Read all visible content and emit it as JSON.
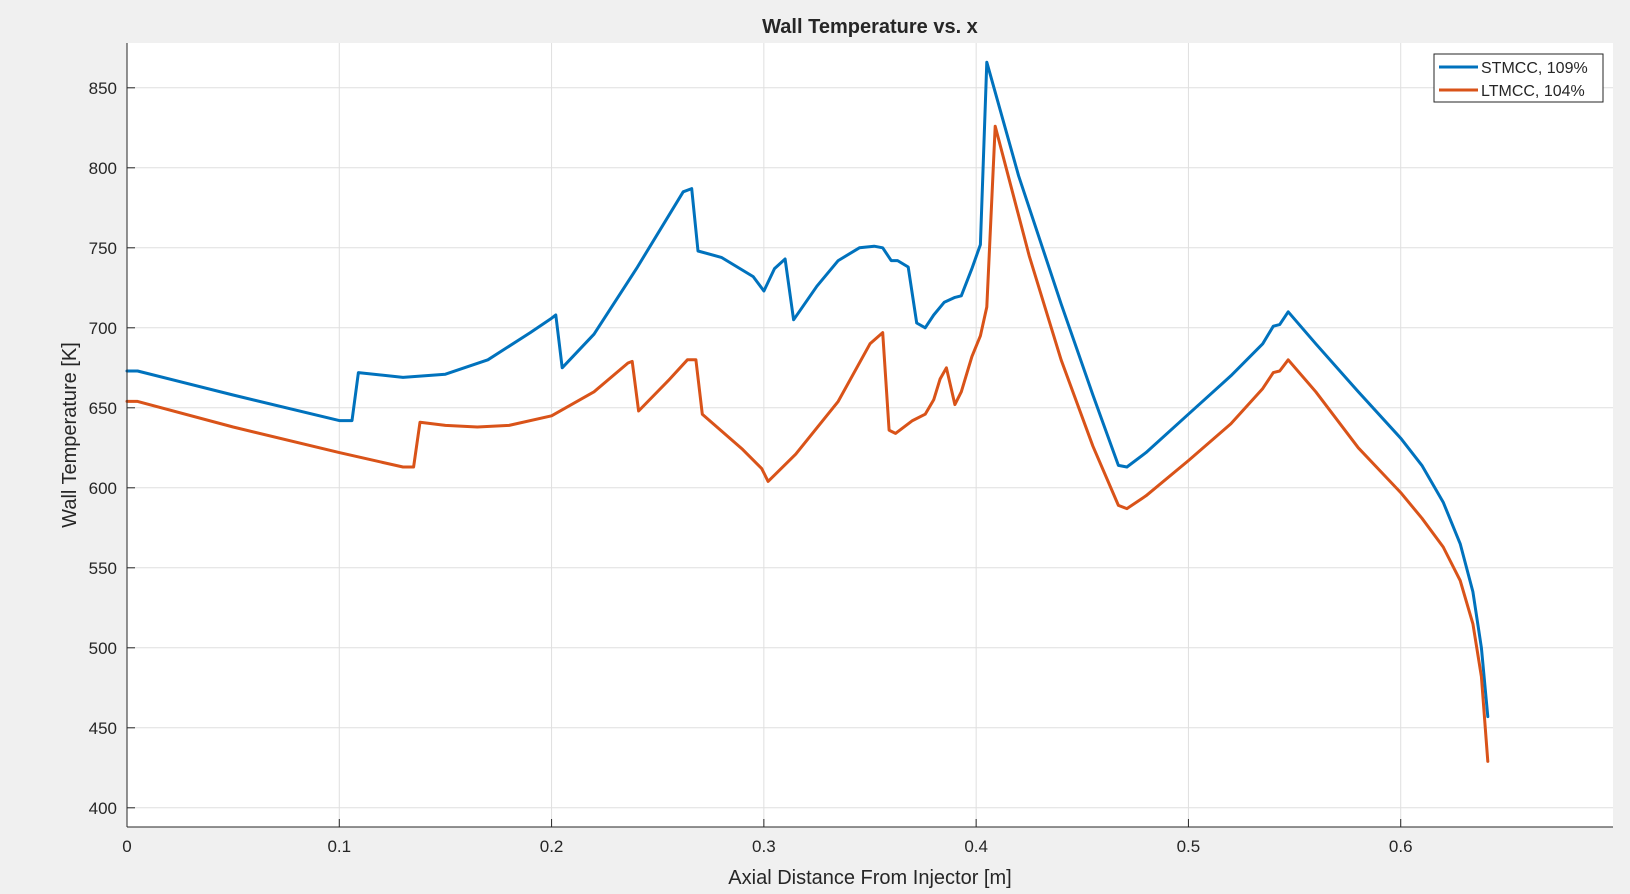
{
  "chart_data": {
    "type": "line",
    "title": "Wall Temperature vs. x",
    "xlabel": "Axial Distance From Injector [m]",
    "ylabel": "Wall Temperature [K]",
    "xlim": [
      0,
      0.7
    ],
    "ylim": [
      388,
      878
    ],
    "xticks": [
      0,
      0.1,
      0.2,
      0.3,
      0.4,
      0.5,
      0.6
    ],
    "xtick_labels": [
      "0",
      "0.1",
      "0.2",
      "0.3",
      "0.4",
      "0.5",
      "0.6"
    ],
    "yticks": [
      400,
      450,
      500,
      550,
      600,
      650,
      700,
      750,
      800,
      850
    ],
    "ytick_labels": [
      "400",
      "450",
      "500",
      "550",
      "600",
      "650",
      "700",
      "750",
      "800",
      "850"
    ],
    "grid": true,
    "legend_position": "top-right",
    "series": [
      {
        "name": "STMCC, 109%",
        "color": "#0072bd",
        "points": [
          [
            0.0,
            673
          ],
          [
            0.005,
            673
          ],
          [
            0.05,
            658
          ],
          [
            0.1,
            642
          ],
          [
            0.106,
            642
          ],
          [
            0.109,
            672
          ],
          [
            0.13,
            669
          ],
          [
            0.15,
            671
          ],
          [
            0.17,
            680
          ],
          [
            0.19,
            697
          ],
          [
            0.2,
            706
          ],
          [
            0.202,
            708
          ],
          [
            0.205,
            675
          ],
          [
            0.22,
            696
          ],
          [
            0.24,
            737
          ],
          [
            0.262,
            785
          ],
          [
            0.266,
            787
          ],
          [
            0.269,
            748
          ],
          [
            0.28,
            744
          ],
          [
            0.295,
            732
          ],
          [
            0.3,
            723
          ],
          [
            0.305,
            737
          ],
          [
            0.31,
            743
          ],
          [
            0.314,
            705
          ],
          [
            0.325,
            726
          ],
          [
            0.335,
            742
          ],
          [
            0.345,
            750
          ],
          [
            0.352,
            751
          ],
          [
            0.356,
            750
          ],
          [
            0.36,
            742
          ],
          [
            0.363,
            742
          ],
          [
            0.368,
            738
          ],
          [
            0.372,
            703
          ],
          [
            0.376,
            700
          ],
          [
            0.38,
            708
          ],
          [
            0.385,
            716
          ],
          [
            0.39,
            719
          ],
          [
            0.393,
            720
          ],
          [
            0.398,
            737
          ],
          [
            0.402,
            752
          ],
          [
            0.405,
            866
          ],
          [
            0.42,
            795
          ],
          [
            0.44,
            715
          ],
          [
            0.455,
            658
          ],
          [
            0.467,
            614
          ],
          [
            0.471,
            613
          ],
          [
            0.48,
            622
          ],
          [
            0.5,
            646
          ],
          [
            0.52,
            670
          ],
          [
            0.535,
            690
          ],
          [
            0.54,
            701
          ],
          [
            0.543,
            702
          ],
          [
            0.547,
            710
          ],
          [
            0.56,
            690
          ],
          [
            0.58,
            660
          ],
          [
            0.6,
            631
          ],
          [
            0.61,
            614
          ],
          [
            0.62,
            591
          ],
          [
            0.628,
            565
          ],
          [
            0.634,
            535
          ],
          [
            0.638,
            500
          ],
          [
            0.641,
            457
          ]
        ]
      },
      {
        "name": "LTMCC, 104%",
        "color": "#d95319",
        "points": [
          [
            0.0,
            654
          ],
          [
            0.005,
            654
          ],
          [
            0.05,
            638
          ],
          [
            0.1,
            622
          ],
          [
            0.13,
            613
          ],
          [
            0.135,
            613
          ],
          [
            0.138,
            641
          ],
          [
            0.15,
            639
          ],
          [
            0.165,
            638
          ],
          [
            0.18,
            639
          ],
          [
            0.2,
            645
          ],
          [
            0.22,
            660
          ],
          [
            0.236,
            678
          ],
          [
            0.238,
            679
          ],
          [
            0.241,
            648
          ],
          [
            0.255,
            667
          ],
          [
            0.264,
            680
          ],
          [
            0.268,
            680
          ],
          [
            0.271,
            646
          ],
          [
            0.29,
            624
          ],
          [
            0.299,
            612
          ],
          [
            0.302,
            604
          ],
          [
            0.315,
            621
          ],
          [
            0.335,
            654
          ],
          [
            0.35,
            690
          ],
          [
            0.356,
            697
          ],
          [
            0.359,
            636
          ],
          [
            0.362,
            634
          ],
          [
            0.37,
            642
          ],
          [
            0.376,
            646
          ],
          [
            0.38,
            655
          ],
          [
            0.383,
            668
          ],
          [
            0.386,
            675
          ],
          [
            0.39,
            652
          ],
          [
            0.393,
            660
          ],
          [
            0.398,
            682
          ],
          [
            0.402,
            695
          ],
          [
            0.405,
            713
          ],
          [
            0.409,
            826
          ],
          [
            0.425,
            745
          ],
          [
            0.44,
            680
          ],
          [
            0.455,
            626
          ],
          [
            0.467,
            589
          ],
          [
            0.471,
            587
          ],
          [
            0.48,
            595
          ],
          [
            0.5,
            617
          ],
          [
            0.52,
            640
          ],
          [
            0.535,
            662
          ],
          [
            0.54,
            672
          ],
          [
            0.543,
            673
          ],
          [
            0.547,
            680
          ],
          [
            0.56,
            660
          ],
          [
            0.58,
            625
          ],
          [
            0.6,
            597
          ],
          [
            0.61,
            581
          ],
          [
            0.62,
            563
          ],
          [
            0.628,
            542
          ],
          [
            0.634,
            515
          ],
          [
            0.638,
            482
          ],
          [
            0.641,
            429
          ]
        ]
      }
    ]
  }
}
